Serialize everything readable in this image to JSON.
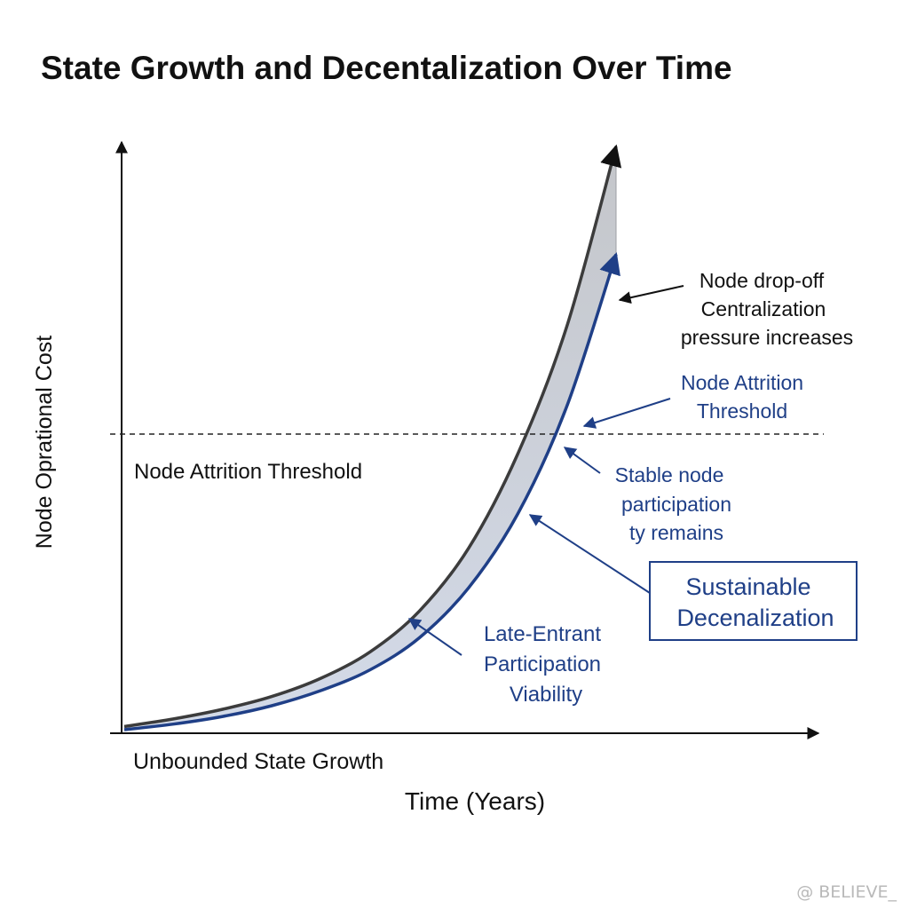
{
  "chart_data": {
    "type": "area",
    "title": "State Growth and Decentalization Over Time",
    "xlabel": "Time (Years)",
    "ylabel": "Node Oprational Cost",
    "grid": false,
    "legend": "none",
    "x": [
      0,
      1,
      2,
      3,
      4,
      5,
      6,
      7,
      8,
      9,
      10
    ],
    "series": [
      {
        "name": "Unbounded State Growth",
        "color": "#3c3c3c",
        "values": [
          0.8,
          2.7,
          5.1,
          8.3,
          12.9,
          19.5,
          29.7,
          45.4,
          69.0,
          101.0,
          146.0
        ]
      },
      {
        "name": "Sustainable Decenalization",
        "color": "#1f3f87",
        "values": [
          0.0,
          1.4,
          3.3,
          6.0,
          9.8,
          15.0,
          23.0,
          35.5,
          54.0,
          81.0,
          119.0
        ]
      }
    ],
    "threshold": {
      "value": 74,
      "label_left": "Node Attrition Threshold",
      "label_right": [
        "Node Attrition",
        "Threshold"
      ]
    },
    "annotations": {
      "drop_off": [
        "Node drop-off",
        "Centralization",
        "pressure increases"
      ],
      "stable": [
        "Stable node",
        "participation",
        "ty remains"
      ],
      "late_entrant": [
        "Late-Entrant",
        "Participation",
        "Viability"
      ],
      "box": [
        "Sustainable",
        "Decenalization"
      ]
    },
    "colors": {
      "accent": "#1f3f87",
      "upper_line": "#3c3c3c",
      "fill_top": "#c4c6ca",
      "fill_bottom": "#d3dae8"
    }
  },
  "watermark": "@ BELIEVE_"
}
